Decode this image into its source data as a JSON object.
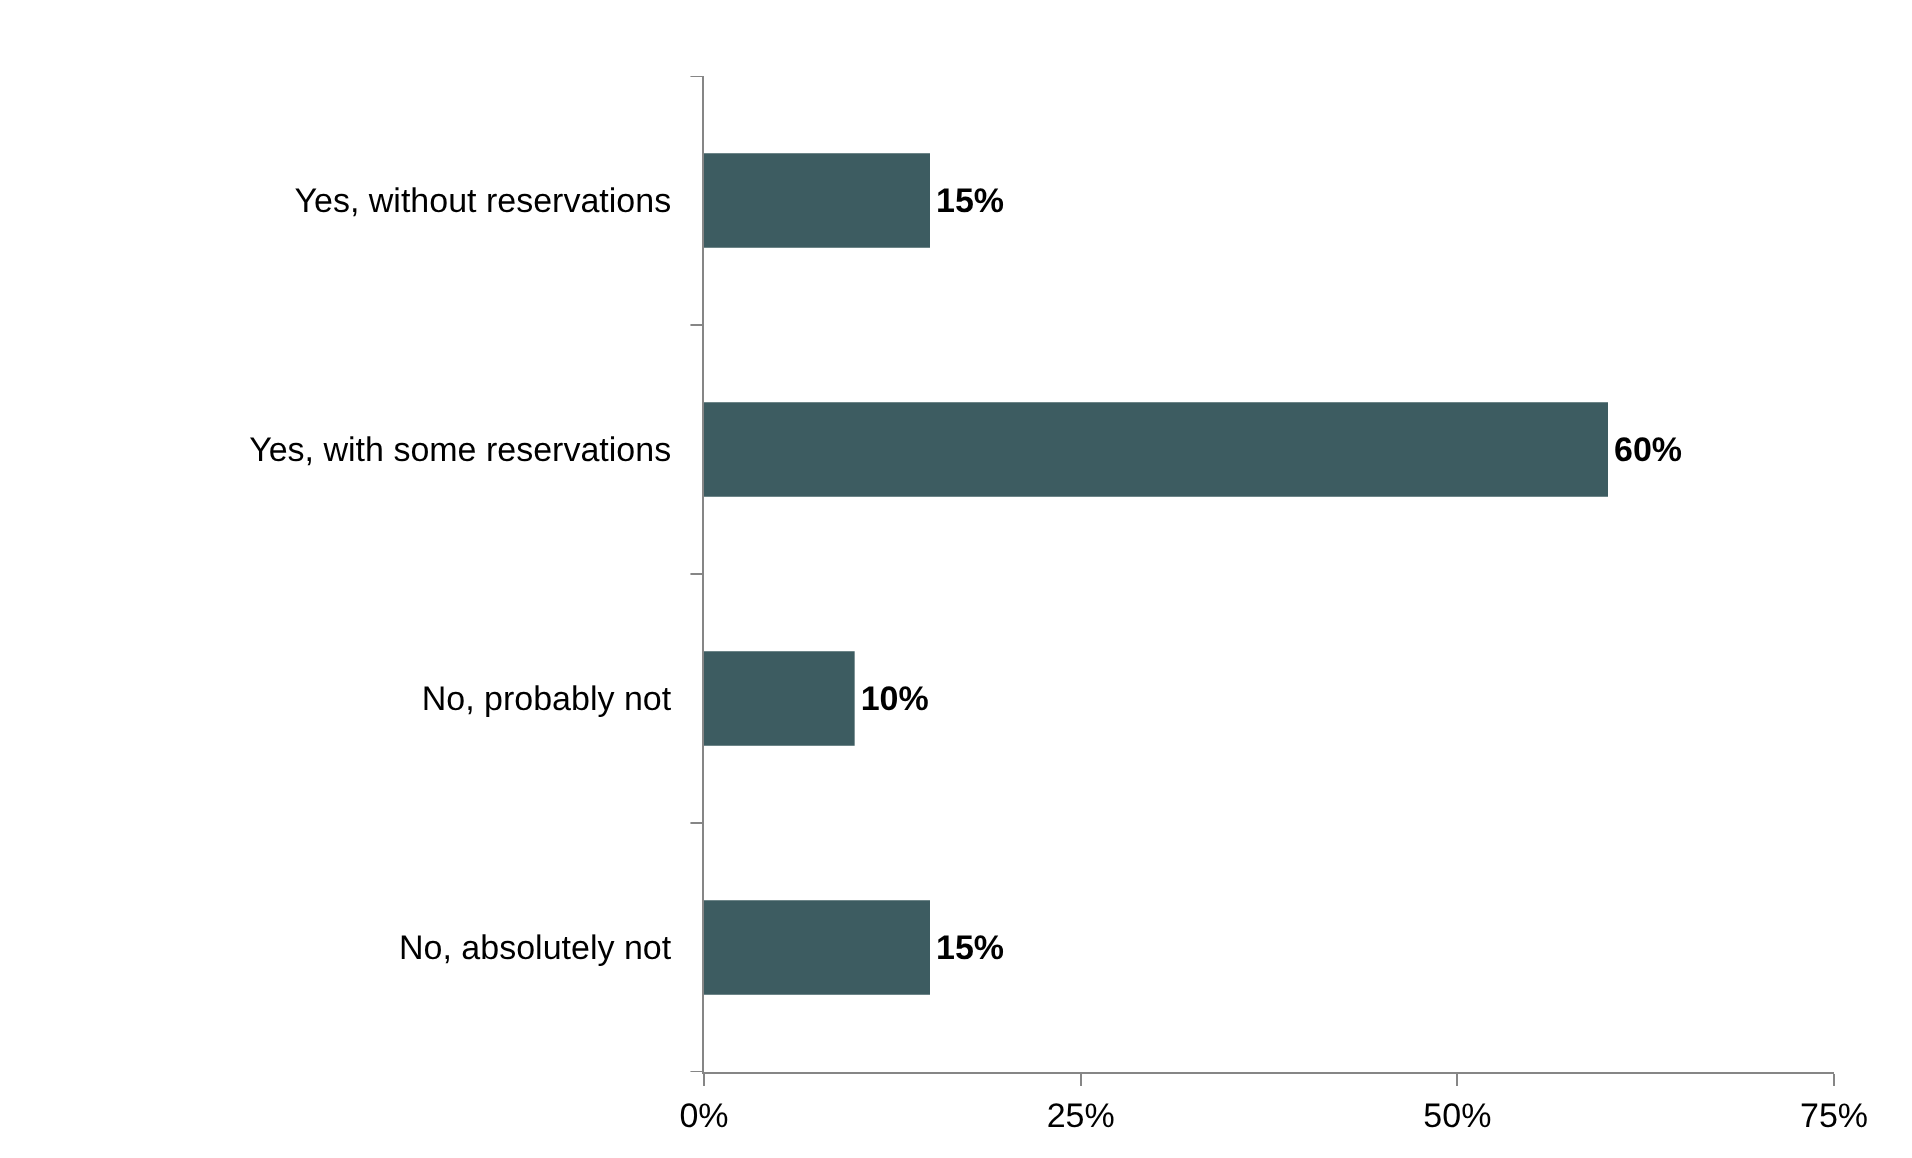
{
  "chart_data": {
    "type": "bar",
    "orientation": "horizontal",
    "categories": [
      "Yes, without reservations",
      "Yes, with some reservations",
      "No, probably not",
      "No, absolutely not"
    ],
    "values": [
      15,
      60,
      10,
      15
    ],
    "value_labels": [
      "15%",
      "60%",
      "10%",
      "15%"
    ],
    "color": "#3d5c61",
    "xlim": [
      0,
      75
    ],
    "xticks": [
      {
        "value": 0,
        "label": "0%"
      },
      {
        "value": 25,
        "label": "25%"
      },
      {
        "value": 50,
        "label": "50%"
      },
      {
        "value": 75,
        "label": "75%"
      }
    ],
    "legend": false
  }
}
